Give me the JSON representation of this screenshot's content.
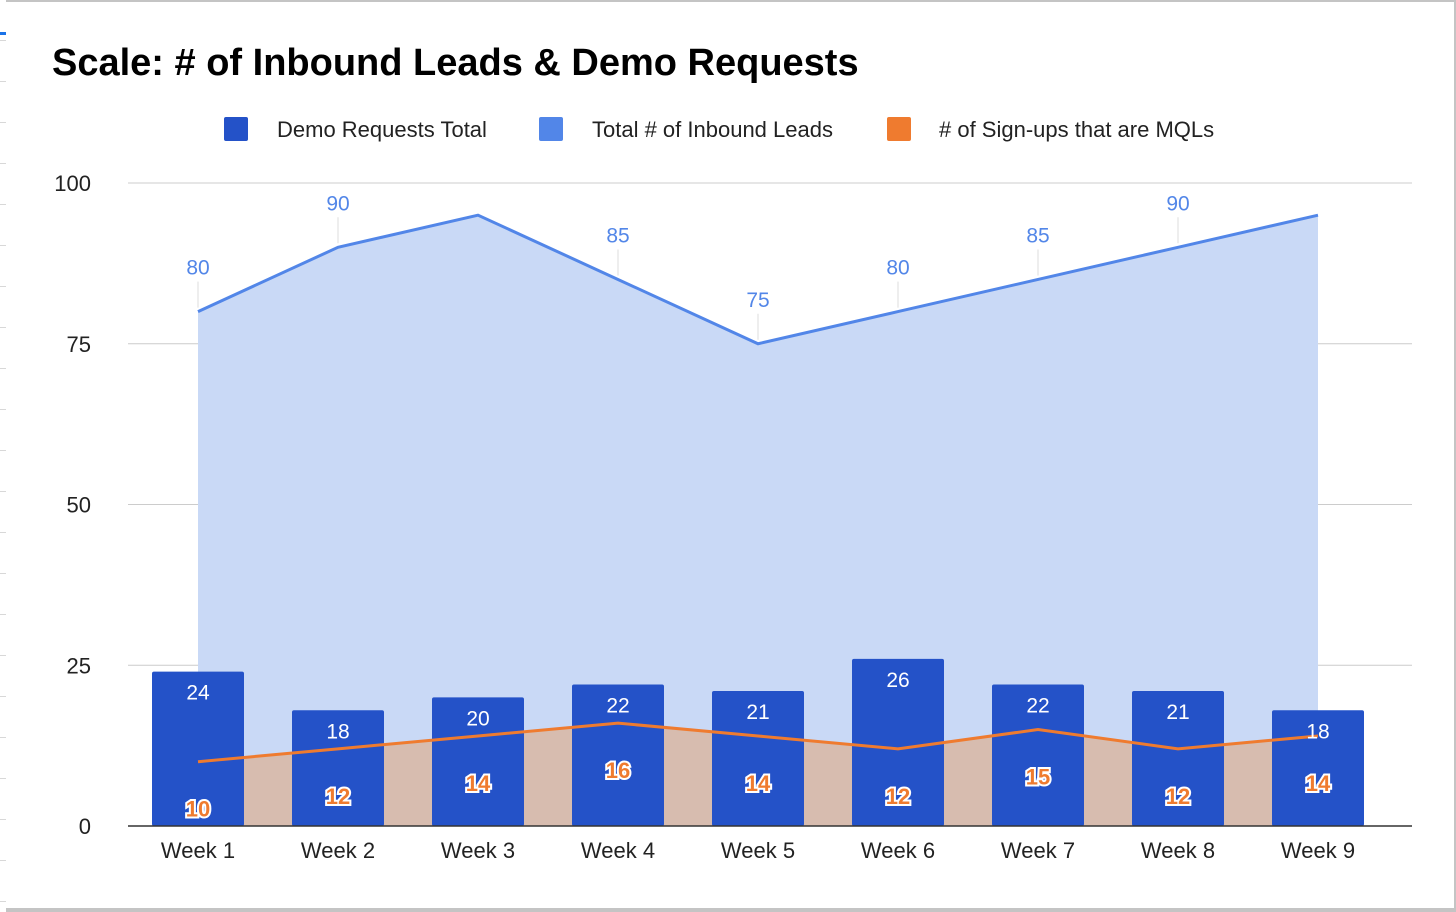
{
  "chart_data": {
    "type": "bar",
    "title": "Scale: # of Inbound Leads & Demo Requests",
    "xlabel": "",
    "ylabel": "",
    "categories": [
      "Week 1",
      "Week 2",
      "Week 3",
      "Week 4",
      "Week 5",
      "Week 6",
      "Week 7",
      "Week 8",
      "Week 9"
    ],
    "ylim": [
      0,
      100
    ],
    "yticks": [
      "0",
      "25",
      "50",
      "75",
      "100"
    ],
    "grid": true,
    "legend_position": "top",
    "series": [
      {
        "name": "Demo Requests Total",
        "type": "bar",
        "color": "#2452c8",
        "values": [
          24,
          18,
          20,
          22,
          21,
          26,
          22,
          21,
          18
        ],
        "labels": [
          "24",
          "18",
          "20",
          "22",
          "21",
          "26",
          "22",
          "21",
          "18"
        ]
      },
      {
        "name": "Total # of Inbound Leads",
        "type": "area",
        "color": "#5286e8",
        "fill": "#c9d9f6",
        "values": [
          80,
          90,
          95,
          85,
          75,
          80,
          85,
          90,
          95
        ],
        "labels": [
          "80",
          "90",
          "",
          "85",
          "75",
          "80",
          "85",
          "90",
          ""
        ]
      },
      {
        "name": "# of Sign-ups that are MQLs",
        "type": "area",
        "color": "#ef7b2f",
        "fill": "#d7bcaf",
        "values": [
          10,
          12,
          14,
          16,
          14,
          12,
          15,
          12,
          14
        ],
        "labels": [
          "10",
          "12",
          "14",
          "16",
          "14",
          "12",
          "15",
          "12",
          "14"
        ]
      }
    ]
  }
}
